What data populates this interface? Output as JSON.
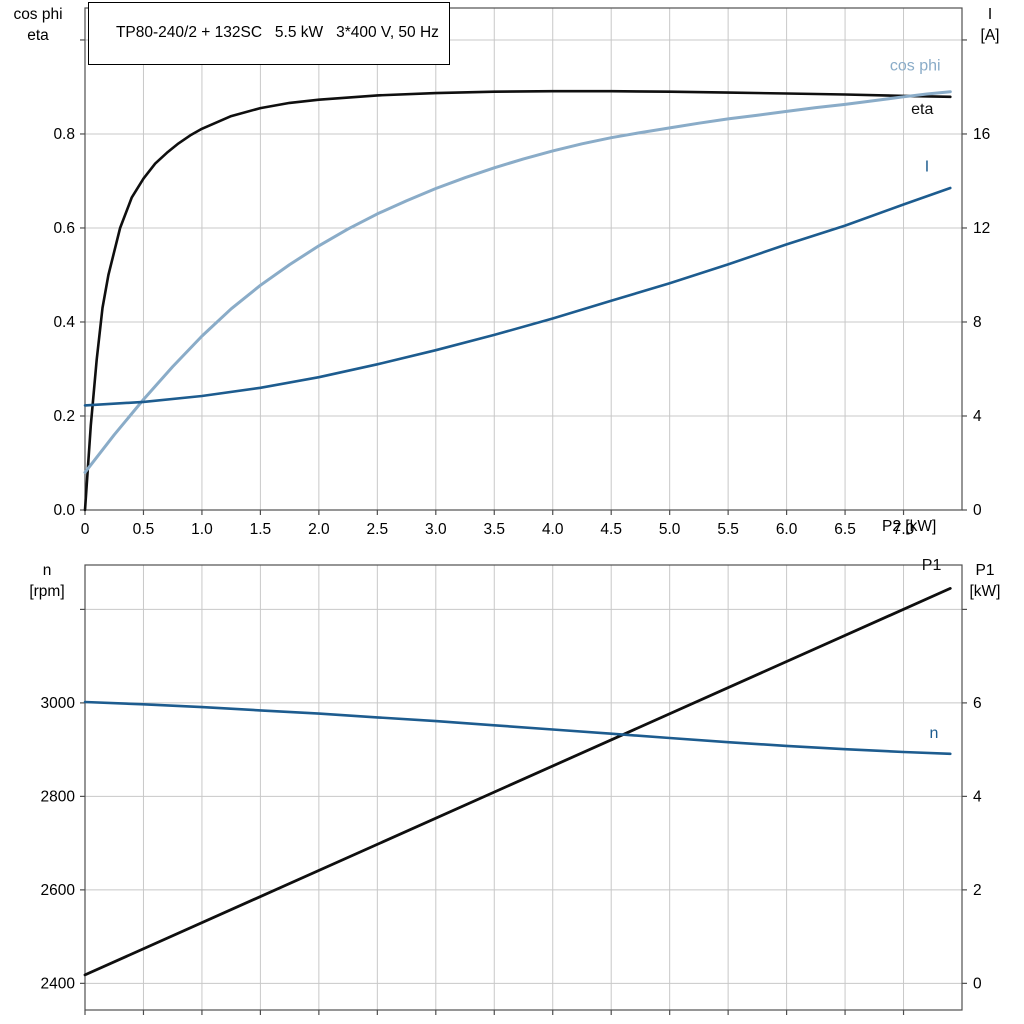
{
  "title": "TP80-240/2 + 132SC   5.5 kW   3*400 V, 50 Hz",
  "axis_headers": {
    "top_left_line1": "cos phi",
    "top_left_line2": "eta",
    "top_right_line1": "I",
    "top_right_line2": "[A]",
    "bottom_left_line1": "n",
    "bottom_left_line2": "[rpm]",
    "bottom_right_line1": "P1",
    "bottom_right_line2": "[kW]",
    "x_axis": "P2 [kW]"
  },
  "colors": {
    "eta": "#0f0f0f",
    "cos_phi": "#8aacc8",
    "current": "#1d5c8f",
    "p1": "#0f0f0f",
    "n": "#1d5c8f",
    "grid": "#c8c8c8",
    "frame": "#4f4f4f",
    "text": "#000000",
    "background": "#ffffff"
  },
  "chart_data": [
    {
      "type": "line",
      "title": "Motor data: cos phi, eta, I vs shaft power P2",
      "x_axis": {
        "label": "P2 [kW]",
        "min": 0,
        "max": 7.5,
        "ticks": [
          {
            "v": 0,
            "label": "0"
          },
          {
            "v": 0.5,
            "label": "0.5"
          },
          {
            "v": 1,
            "label": "1.0"
          },
          {
            "v": 1.5,
            "label": "1.5"
          },
          {
            "v": 2,
            "label": "2.0"
          },
          {
            "v": 2.5,
            "label": "2.5"
          },
          {
            "v": 3,
            "label": "3.0"
          },
          {
            "v": 3.5,
            "label": "3.5"
          },
          {
            "v": 4,
            "label": "4.0"
          },
          {
            "v": 4.5,
            "label": "4.5"
          },
          {
            "v": 5,
            "label": "5.0"
          },
          {
            "v": 5.5,
            "label": "5.5"
          },
          {
            "v": 6,
            "label": "6.0"
          },
          {
            "v": 6.5,
            "label": "6.5"
          },
          {
            "v": 7,
            "label": "7.0"
          }
        ]
      },
      "y_left": {
        "label": "cos phi / eta",
        "min": 0,
        "max": 1.068,
        "ticks": [
          {
            "v": 0,
            "label": "0.0"
          },
          {
            "v": 0.2,
            "label": "0.2"
          },
          {
            "v": 0.4,
            "label": "0.4"
          },
          {
            "v": 0.6,
            "label": "0.6"
          },
          {
            "v": 0.8,
            "label": "0.8"
          },
          {
            "v": 1.0,
            "label": ""
          }
        ]
      },
      "y_right": {
        "label": "I [A]",
        "min": 0,
        "max": 21.36,
        "ticks": [
          {
            "v": 0,
            "label": "0"
          },
          {
            "v": 4,
            "label": "4"
          },
          {
            "v": 8,
            "label": "8"
          },
          {
            "v": 12,
            "label": "12"
          },
          {
            "v": 16,
            "label": "16"
          },
          {
            "v": 20,
            "label": ""
          }
        ]
      },
      "series": [
        {
          "name": "eta",
          "label": "eta",
          "axis": "left",
          "color_key": "eta",
          "width": 2.6,
          "label_at": [
            7.16,
            0.843
          ],
          "x": [
            0,
            0.05,
            0.1,
            0.15,
            0.2,
            0.3,
            0.4,
            0.5,
            0.6,
            0.7,
            0.8,
            0.9,
            1,
            1.25,
            1.5,
            1.75,
            2,
            2.5,
            3,
            3.5,
            4,
            4.5,
            5,
            5.5,
            6,
            6.5,
            7,
            7.4
          ],
          "y": [
            0,
            0.18,
            0.32,
            0.43,
            0.5,
            0.6,
            0.665,
            0.705,
            0.737,
            0.76,
            0.78,
            0.797,
            0.811,
            0.838,
            0.855,
            0.866,
            0.873,
            0.882,
            0.887,
            0.89,
            0.891,
            0.891,
            0.89,
            0.888,
            0.886,
            0.884,
            0.881,
            0.879
          ]
        },
        {
          "name": "cos phi",
          "label": "cos phi",
          "axis": "left",
          "color_key": "cos_phi",
          "width": 3,
          "label_at": [
            7.1,
            0.935
          ],
          "x": [
            0,
            0.25,
            0.5,
            0.75,
            1,
            1.25,
            1.5,
            1.75,
            2,
            2.25,
            2.5,
            2.75,
            3,
            3.25,
            3.5,
            3.75,
            4,
            4.25,
            4.5,
            4.75,
            5,
            5.25,
            5.5,
            5.75,
            6,
            6.25,
            6.5,
            6.75,
            7,
            7.2,
            7.4
          ],
          "y": [
            0.08,
            0.16,
            0.235,
            0.305,
            0.37,
            0.428,
            0.478,
            0.522,
            0.562,
            0.598,
            0.63,
            0.658,
            0.684,
            0.707,
            0.728,
            0.747,
            0.764,
            0.779,
            0.792,
            0.803,
            0.813,
            0.823,
            0.832,
            0.84,
            0.848,
            0.856,
            0.863,
            0.871,
            0.879,
            0.885,
            0.89
          ]
        },
        {
          "name": "I",
          "label": "I",
          "axis": "right",
          "color_key": "current",
          "width": 2.6,
          "label_at": [
            7.2,
            14.4
          ],
          "x": [
            0,
            0.5,
            1,
            1.5,
            2,
            2.5,
            3,
            3.5,
            4,
            4.5,
            5,
            5.5,
            6,
            6.5,
            7,
            7.4
          ],
          "y": [
            4.45,
            4.6,
            4.85,
            5.2,
            5.65,
            6.2,
            6.8,
            7.45,
            8.15,
            8.9,
            9.65,
            10.45,
            11.3,
            12.1,
            13.0,
            13.7
          ]
        }
      ]
    },
    {
      "type": "line",
      "title": "Speed n and input power P1 vs shaft power P2",
      "x_axis": {
        "label": "",
        "min": 0,
        "max": 7.5,
        "ticks": [
          {
            "v": 0,
            "label": ""
          },
          {
            "v": 0.5,
            "label": ""
          },
          {
            "v": 1,
            "label": ""
          },
          {
            "v": 1.5,
            "label": ""
          },
          {
            "v": 2,
            "label": ""
          },
          {
            "v": 2.5,
            "label": ""
          },
          {
            "v": 3,
            "label": ""
          },
          {
            "v": 3.5,
            "label": ""
          },
          {
            "v": 4,
            "label": ""
          },
          {
            "v": 4.5,
            "label": ""
          },
          {
            "v": 5,
            "label": ""
          },
          {
            "v": 5.5,
            "label": ""
          },
          {
            "v": 6,
            "label": ""
          },
          {
            "v": 6.5,
            "label": ""
          },
          {
            "v": 7,
            "label": ""
          }
        ]
      },
      "y_left": {
        "label": "n [rpm]",
        "min": 2343,
        "max": 3295,
        "ticks": [
          {
            "v": 2400,
            "label": "2400"
          },
          {
            "v": 2600,
            "label": "2600"
          },
          {
            "v": 2800,
            "label": "2800"
          },
          {
            "v": 3000,
            "label": "3000"
          },
          {
            "v": 3200,
            "label": ""
          }
        ]
      },
      "y_right": {
        "label": "P1 [kW]",
        "min": -0.57,
        "max": 8.95,
        "ticks": [
          {
            "v": 0,
            "label": "0"
          },
          {
            "v": 2,
            "label": "2"
          },
          {
            "v": 4,
            "label": "4"
          },
          {
            "v": 6,
            "label": "6"
          },
          {
            "v": 8,
            "label": ""
          }
        ]
      },
      "series": [
        {
          "name": "P1",
          "label": "P1",
          "axis": "right",
          "color_key": "p1",
          "width": 2.8,
          "label_at": [
            7.24,
            8.84
          ],
          "x": [
            0,
            7.4
          ],
          "y": [
            0.18,
            8.45
          ]
        },
        {
          "name": "n",
          "label": "n",
          "axis": "left",
          "color_key": "n",
          "width": 2.6,
          "label_at": [
            7.26,
            2925
          ],
          "x": [
            0,
            0.5,
            1,
            1.5,
            2,
            2.5,
            3,
            3.5,
            4,
            4.5,
            5,
            5.5,
            6,
            6.5,
            7,
            7.4
          ],
          "y": [
            3002,
            2997,
            2991,
            2984,
            2977,
            2969,
            2961,
            2952,
            2943,
            2934,
            2925,
            2916,
            2908,
            2901,
            2895,
            2891
          ]
        }
      ]
    }
  ]
}
